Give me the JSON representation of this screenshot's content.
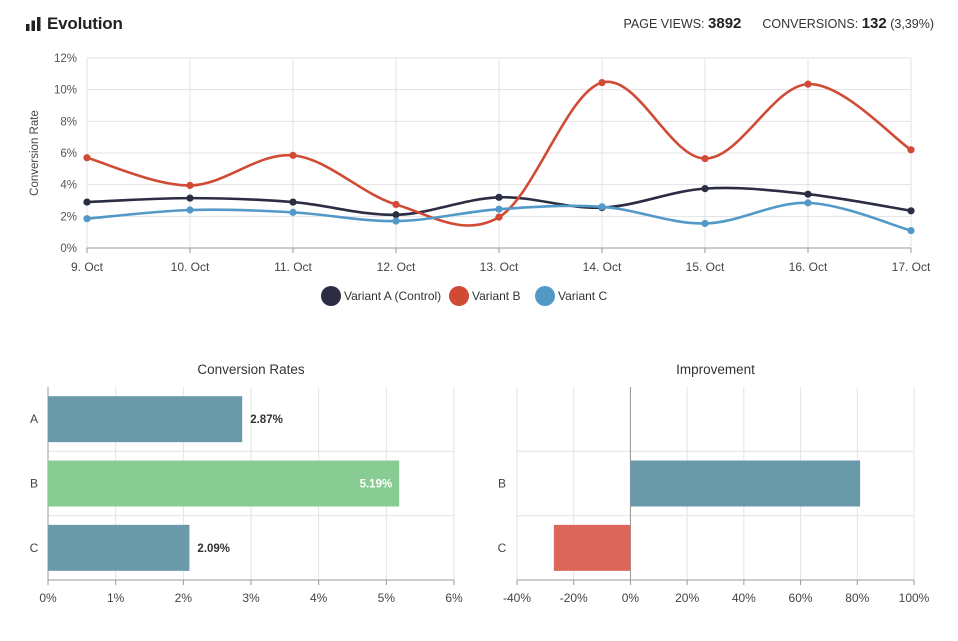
{
  "header": {
    "title": "Evolution",
    "page_views_label": "PAGE VIEWS:",
    "page_views_value": "3892",
    "conversions_label": "CONVERSIONS:",
    "conversions_value": "132",
    "conversions_rate": "(3,39%)"
  },
  "colors": {
    "variant_a": "#2b2d42",
    "variant_b": "#d04a35",
    "variant_c": "#5299c7",
    "bar_default": "#6a9aaa",
    "bar_best": "#88cc94",
    "bar_negative": "#dd665a",
    "grid": "#e3e3e3"
  },
  "chart_data": [
    {
      "type": "line",
      "title": "Evolution",
      "ylabel": "Conversion Rate",
      "xlabel": "",
      "categories": [
        "9. Oct",
        "10. Oct",
        "11. Oct",
        "12. Oct",
        "13. Oct",
        "14. Oct",
        "15. Oct",
        "16. Oct",
        "17. Oct"
      ],
      "yticks": [
        "0%",
        "2%",
        "4%",
        "6%",
        "8%",
        "10%",
        "12%"
      ],
      "ylim": [
        0,
        12
      ],
      "grid": true,
      "legend_position": "bottom-center",
      "series": [
        {
          "name": "Variant  A (Control)",
          "color_key": "variant_a",
          "values": [
            2.9,
            3.15,
            2.9,
            2.1,
            3.2,
            2.55,
            3.75,
            3.4,
            2.35
          ]
        },
        {
          "name": "Variant B",
          "color_key": "variant_b",
          "values": [
            5.7,
            3.95,
            5.85,
            2.75,
            1.95,
            10.45,
            5.65,
            10.35,
            6.2
          ]
        },
        {
          "name": "Variant C",
          "color_key": "variant_c",
          "values": [
            1.85,
            2.4,
            2.25,
            1.7,
            2.45,
            2.6,
            1.55,
            2.85,
            1.1
          ]
        }
      ]
    },
    {
      "type": "bar",
      "orientation": "horizontal",
      "title": "Conversion Rates",
      "categories": [
        "A",
        "B",
        "C"
      ],
      "values": [
        2.87,
        5.19,
        2.09
      ],
      "data_labels": [
        "2.87%",
        "5.19%",
        "2.09%"
      ],
      "best_index": 1,
      "xlim": [
        0,
        6
      ],
      "xticks": [
        "0%",
        "1%",
        "2%",
        "3%",
        "4%",
        "5%",
        "6%"
      ],
      "grid": true
    },
    {
      "type": "bar",
      "orientation": "horizontal",
      "title": "Improvement",
      "categories": [
        "B",
        "C"
      ],
      "values": [
        81,
        -27
      ],
      "xlim": [
        -40,
        100
      ],
      "xticks": [
        "-40%",
        "-20%",
        "0%",
        "20%",
        "40%",
        "60%",
        "80%",
        "100%"
      ],
      "grid": true
    }
  ]
}
